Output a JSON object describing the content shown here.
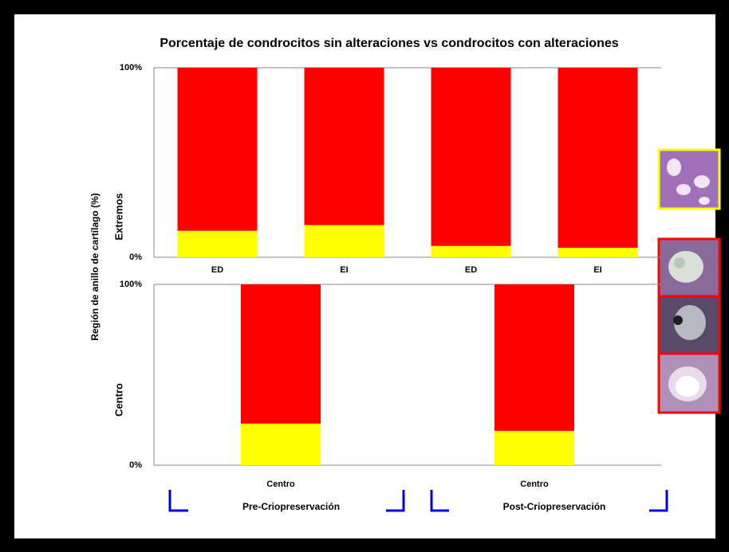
{
  "chart_data": [
    {
      "type": "stacked_bar",
      "title": "Porcentaje de condrocitos sin alteraciones vs condrocitos con alteraciones",
      "y_label": "Región  de anillo de cartílago (%)",
      "panel_label": "Extremos",
      "categories": [
        "ED",
        "EI",
        "ED",
        "EI"
      ],
      "series": [
        {
          "color": "#ffff00",
          "values": [
            14,
            17,
            6,
            5
          ]
        },
        {
          "color": "#ff0000",
          "values": [
            86,
            83,
            94,
            95
          ]
        }
      ],
      "ylim": [
        0,
        100
      ],
      "yticks": [
        {
          "value": 0,
          "label": "0%"
        },
        {
          "value": 100,
          "label": "100%"
        }
      ],
      "grid": true
    },
    {
      "type": "stacked_bar",
      "panel_label": "Centro",
      "categories": [
        "Centro",
        "Centro"
      ],
      "groups": [
        "Pre-Criopreservación",
        "Post-Criopreservación"
      ],
      "series": [
        {
          "color": "#ffff00",
          "values": [
            23,
            19
          ]
        },
        {
          "color": "#ff0000",
          "values": [
            77,
            81
          ]
        }
      ],
      "ylim": [
        0,
        100
      ],
      "yticks": [
        {
          "value": 0,
          "label": "0%"
        },
        {
          "value": 100,
          "label": "100%"
        }
      ],
      "grid": true
    }
  ]
}
